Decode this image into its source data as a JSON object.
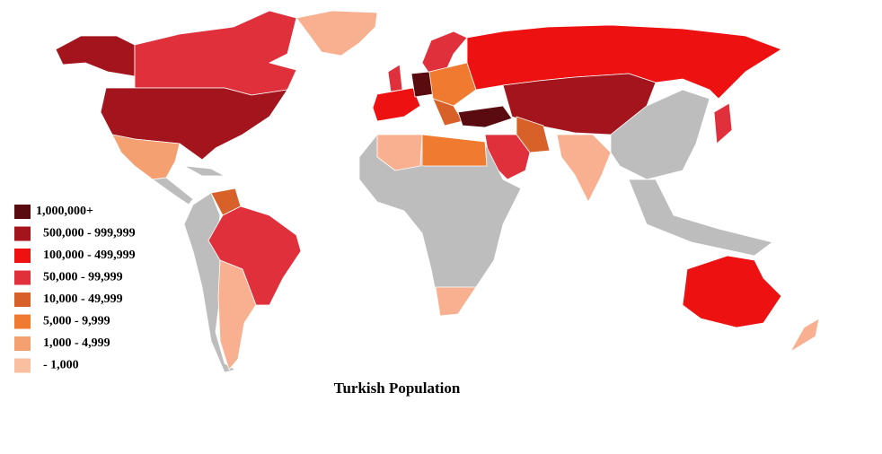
{
  "title": "Turkish Population",
  "legend": [
    {
      "label": "1,000,000+",
      "color": "#5a0b10"
    },
    {
      "label": "500,000 - 999,999",
      "color": "#a3141c"
    },
    {
      "label": "100,000 - 499,999",
      "color": "#ee1111"
    },
    {
      "label": "50,000 - 99,999",
      "color": "#e0303c"
    },
    {
      "label": "10,000 - 49,999",
      "color": "#d8612a"
    },
    {
      "label": "5,000 - 9,999",
      "color": "#f07a30"
    },
    {
      "label": "1,000 - 4,999",
      "color": "#f4a070"
    },
    {
      "label": "- 1,000",
      "color": "#f8bfa0"
    }
  ]
}
